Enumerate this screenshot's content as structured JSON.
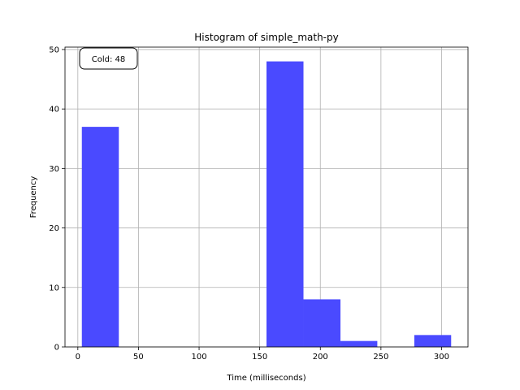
{
  "chart_data": {
    "type": "bar",
    "title": "Histogram of simple_math-py",
    "xlabel": "Time (milliseconds)",
    "ylabel": "Frequency",
    "bins": [
      {
        "start": 3.3,
        "end": 33.8,
        "count": 37
      },
      {
        "start": 33.8,
        "end": 64.2,
        "count": 0
      },
      {
        "start": 64.2,
        "end": 94.7,
        "count": 0
      },
      {
        "start": 94.7,
        "end": 125.2,
        "count": 0
      },
      {
        "start": 125.2,
        "end": 155.6,
        "count": 0
      },
      {
        "start": 155.6,
        "end": 186.1,
        "count": 48
      },
      {
        "start": 186.1,
        "end": 216.6,
        "count": 8
      },
      {
        "start": 216.6,
        "end": 247.0,
        "count": 1
      },
      {
        "start": 247.0,
        "end": 277.5,
        "count": 0
      },
      {
        "start": 277.5,
        "end": 307.9,
        "count": 2
      }
    ],
    "xlim": [
      -10.6,
      321.8
    ],
    "ylim": [
      0,
      50.4
    ],
    "xticks": [
      0,
      50,
      100,
      150,
      200,
      250,
      300
    ],
    "yticks": [
      0,
      10,
      20,
      30,
      40,
      50
    ],
    "grid": true,
    "bar_color": "#4a4aff",
    "annotation": {
      "text": "Cold: 48",
      "placement": "top-left"
    }
  }
}
